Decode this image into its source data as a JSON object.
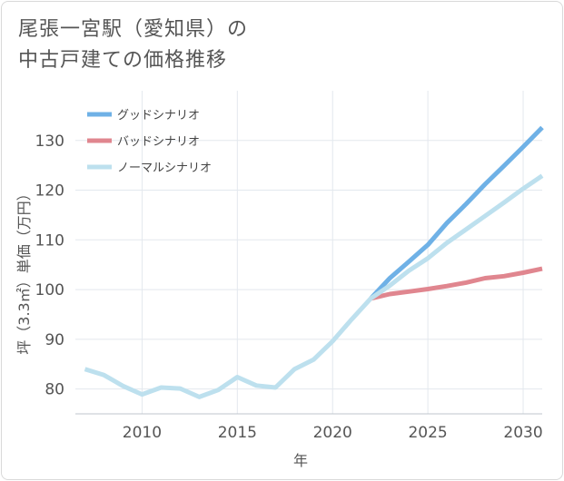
{
  "chart_title_line1": "尾張一宮駅（愛知県）の",
  "chart_title_line2": "中古戸建ての価格推移",
  "chart_data": {
    "type": "line",
    "title": "尾張一宮駅（愛知県）の中古戸建ての価格推移",
    "xlabel": "年",
    "ylabel": "坪（3.3㎡）単価（万円）",
    "xlim": [
      2006.5,
      2031
    ],
    "ylim": [
      75,
      140
    ],
    "xticks": [
      2010,
      2015,
      2020,
      2025,
      2030
    ],
    "yticks": [
      80,
      90,
      100,
      110,
      120,
      130
    ],
    "legend_position": "top-left",
    "series": [
      {
        "name": "グッドシナリオ",
        "color": "#6fb1e6",
        "x": [
          2022,
          2023,
          2024,
          2025,
          2026,
          2027,
          2028,
          2029,
          2030,
          2031
        ],
        "values": [
          98.2,
          102.3,
          105.6,
          109.0,
          113.4,
          117.2,
          121.2,
          124.9,
          128.7,
          132.6
        ]
      },
      {
        "name": "バッドシナリオ",
        "color": "#e0868f",
        "x": [
          2022,
          2023,
          2024,
          2025,
          2026,
          2027,
          2028,
          2029,
          2030,
          2031
        ],
        "values": [
          98.2,
          99.1,
          99.6,
          100.1,
          100.7,
          101.4,
          102.3,
          102.7,
          103.4,
          104.2
        ]
      },
      {
        "name": "ノーマルシナリオ",
        "color": "#bde0ee",
        "x": [
          2007,
          2008,
          2009,
          2010,
          2011,
          2012,
          2013,
          2014,
          2015,
          2016,
          2017,
          2018,
          2019,
          2020,
          2021,
          2022,
          2023,
          2024,
          2025,
          2026,
          2027,
          2028,
          2029,
          2030,
          2031
        ],
        "values": [
          84.0,
          82.8,
          80.6,
          78.9,
          80.3,
          80.1,
          78.4,
          79.8,
          82.4,
          80.7,
          80.3,
          84.0,
          85.9,
          89.6,
          94.0,
          98.2,
          100.8,
          103.8,
          106.3,
          109.4,
          112.1,
          114.8,
          117.5,
          120.3,
          122.9
        ]
      }
    ]
  }
}
